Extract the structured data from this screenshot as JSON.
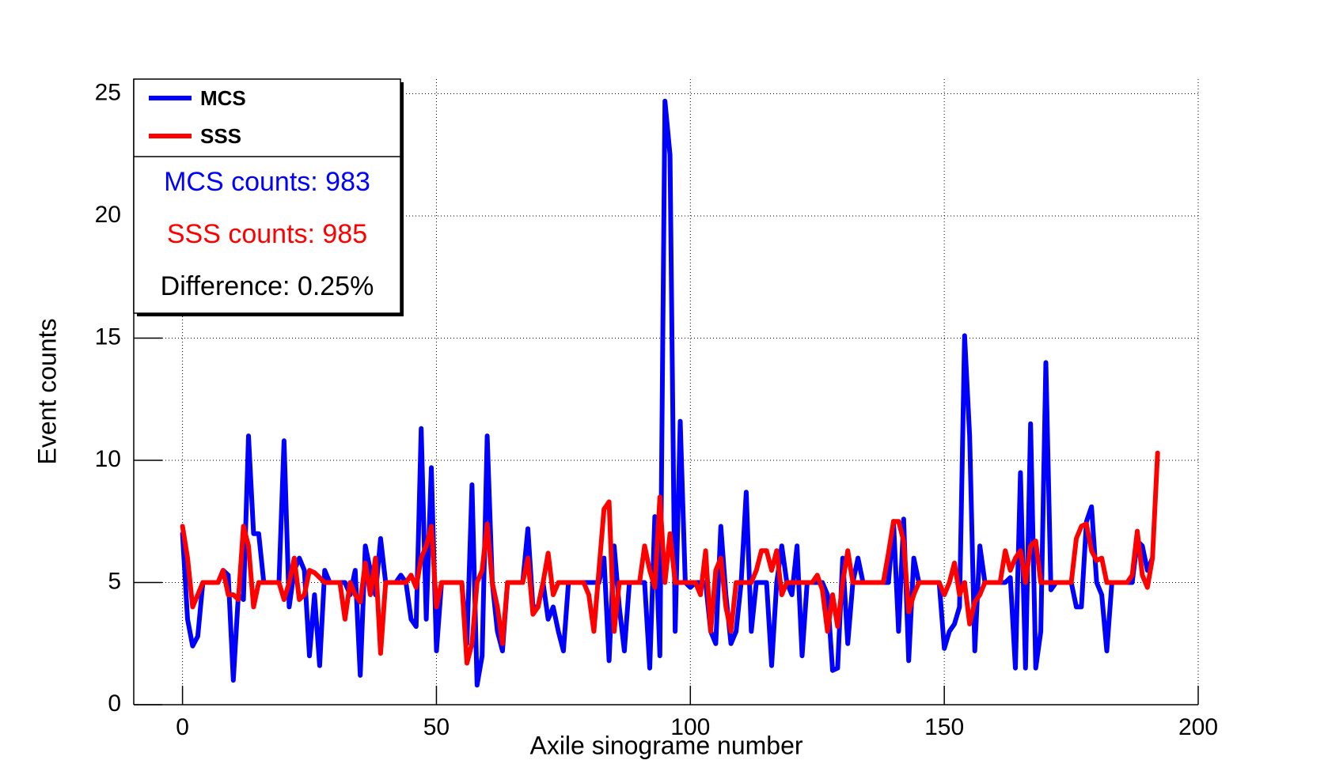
{
  "chart_data": {
    "type": "line",
    "xlabel": "Axile sinograme number",
    "ylabel": "Event counts",
    "x": [
      0,
      1,
      2,
      3,
      4,
      5,
      6,
      7,
      8,
      9,
      10,
      11,
      12,
      13,
      14,
      15,
      16,
      17,
      18,
      19,
      20,
      21,
      22,
      23,
      24,
      25,
      26,
      27,
      28,
      29,
      30,
      31,
      32,
      33,
      34,
      35,
      36,
      37,
      38,
      39,
      40,
      41,
      42,
      43,
      44,
      45,
      46,
      47,
      48,
      49,
      50,
      51,
      52,
      53,
      54,
      55,
      56,
      57,
      58,
      59,
      60,
      61,
      62,
      63,
      64,
      65,
      66,
      67,
      68,
      69,
      70,
      71,
      72,
      73,
      74,
      75,
      76,
      77,
      78,
      79,
      80,
      81,
      82,
      83,
      84,
      85,
      86,
      87,
      88,
      89,
      90,
      91,
      92,
      93,
      94,
      95,
      96,
      97,
      98,
      99,
      100,
      101,
      102,
      103,
      104,
      105,
      106,
      107,
      108,
      109,
      110,
      111,
      112,
      113,
      114,
      115,
      116,
      117,
      118,
      119,
      120,
      121,
      122,
      123,
      124,
      125,
      126,
      127,
      128,
      129,
      130,
      131,
      132,
      133,
      134,
      135,
      136,
      137,
      138,
      139,
      140,
      141,
      142,
      143,
      144,
      145,
      146,
      147,
      148,
      149,
      150,
      151,
      152,
      153,
      154,
      155,
      156,
      157,
      158,
      159,
      160,
      161,
      162,
      163,
      164,
      165,
      166,
      167,
      168,
      169,
      170,
      171,
      172,
      173,
      174,
      175,
      176,
      177,
      178,
      179,
      180,
      181,
      182,
      183,
      184,
      185,
      186,
      187,
      188,
      189,
      190,
      191,
      192
    ],
    "series": [
      {
        "name": "MCS",
        "color": "#0000ff",
        "values": [
          7,
          3.5,
          2.4,
          2.8,
          5,
          5,
          5,
          5,
          5.5,
          5.3,
          1,
          4.5,
          4.3,
          11,
          7,
          7,
          5,
          5,
          5,
          5,
          10.8,
          4,
          5.5,
          6,
          5.5,
          2,
          4.5,
          1.6,
          5.5,
          5,
          5,
          5,
          5,
          4.5,
          5.5,
          1.2,
          6.5,
          5.5,
          4.5,
          6.8,
          5,
          5,
          5,
          5.3,
          5,
          3.5,
          3.2,
          11.3,
          3.5,
          9.7,
          2.2,
          5,
          5,
          5,
          5,
          5,
          2.5,
          9,
          0.8,
          2,
          11,
          5,
          3,
          2.2,
          5,
          5,
          5,
          5,
          7.2,
          4,
          4,
          5,
          3.5,
          4,
          3,
          2.2,
          5,
          5,
          5,
          5,
          5,
          5,
          5,
          6,
          1.8,
          6.5,
          4,
          2.2,
          5,
          5,
          5,
          5,
          1.5,
          7.7,
          2,
          24.7,
          22.5,
          3,
          11.6,
          5,
          4.8,
          5,
          5,
          5,
          3,
          2.5,
          7.3,
          4.5,
          2.5,
          3,
          5,
          8.7,
          3,
          5,
          5,
          5,
          1.6,
          5,
          6.5,
          5,
          4.5,
          6.5,
          2,
          5,
          5,
          5,
          5,
          4.5,
          1.4,
          1.5,
          6,
          2.5,
          5,
          6,
          5,
          5,
          5,
          5,
          5,
          5,
          7.5,
          3,
          7.6,
          1.8,
          6,
          5,
          5,
          5,
          5,
          5,
          2.3,
          3,
          3.3,
          4,
          15.1,
          11,
          2.2,
          6.5,
          5,
          5,
          5,
          5,
          5,
          5.2,
          1.5,
          9.5,
          1.5,
          11.5,
          1.5,
          3,
          14,
          4.7,
          5,
          5,
          5,
          5,
          4,
          4,
          7.5,
          8.1,
          5,
          4.5,
          2.2,
          5,
          5,
          5,
          5,
          5,
          6.7,
          6.5,
          5.5,
          6,
          null
        ]
      },
      {
        "name": "SSS",
        "color": "#ff0000",
        "values": [
          7.3,
          6,
          4,
          4.5,
          5,
          5,
          5,
          5,
          5.5,
          4.5,
          4.5,
          4.3,
          7.3,
          6.5,
          4,
          5,
          5,
          5,
          5,
          5,
          4.3,
          5,
          6,
          4.3,
          4.5,
          5.5,
          5.4,
          5.2,
          5,
          5,
          5,
          5,
          3.5,
          5,
          4.5,
          4.2,
          5.8,
          4.5,
          6,
          2.1,
          5,
          5,
          5,
          5,
          5,
          5.3,
          4.8,
          6,
          6.5,
          7.3,
          4,
          5,
          5,
          5,
          5,
          5,
          1.7,
          2.5,
          5,
          5.5,
          7.4,
          5,
          4,
          2.5,
          5,
          5,
          5,
          5,
          6,
          3.7,
          4,
          5,
          6.2,
          4.5,
          5,
          5,
          5,
          5,
          5,
          5,
          4.5,
          3,
          5.5,
          8,
          8.3,
          3,
          5,
          5,
          5,
          5,
          5,
          6.5,
          5.5,
          4.8,
          8.5,
          5,
          7,
          5,
          5,
          5,
          5,
          5,
          4.5,
          6.3,
          3,
          5.5,
          6,
          4,
          3,
          5,
          5,
          5,
          5,
          5.5,
          6.3,
          6.3,
          5.5,
          6.3,
          4.5,
          5,
          5,
          5,
          5,
          5,
          5,
          5.3,
          4.7,
          3,
          4.5,
          3.2,
          5,
          6.3,
          5,
          5,
          5,
          5,
          5,
          5,
          5,
          6.2,
          7.5,
          7.5,
          6.7,
          3.8,
          4.5,
          5,
          5,
          5,
          5,
          5,
          4.5,
          5,
          5.8,
          4.5,
          5,
          3.3,
          4.2,
          4.5,
          5,
          5,
          5,
          5,
          6.3,
          5.5,
          6,
          6.3,
          5,
          6.5,
          6.7,
          5,
          5,
          5,
          5,
          5,
          5,
          5,
          6.8,
          7.3,
          7.4,
          6.3,
          5.9,
          6,
          5,
          5,
          5,
          5,
          5,
          5.3,
          7.1,
          5.3,
          4.8,
          6,
          10.3
        ]
      }
    ],
    "annotations": [
      {
        "text": "MCS counts: 983",
        "color": "#0000ff"
      },
      {
        "text": "SSS counts: 985",
        "color": "#ff0000"
      },
      {
        "text": "Difference: 0.25%",
        "color": "#000000"
      }
    ],
    "xlim": [
      -9.6,
      200
    ],
    "ylim": [
      0,
      25.6
    ],
    "xticks": [
      0,
      50,
      100,
      150,
      200
    ],
    "yticks": [
      0,
      5,
      10,
      15,
      20,
      25
    ],
    "grid": true,
    "legend": "top-left"
  }
}
